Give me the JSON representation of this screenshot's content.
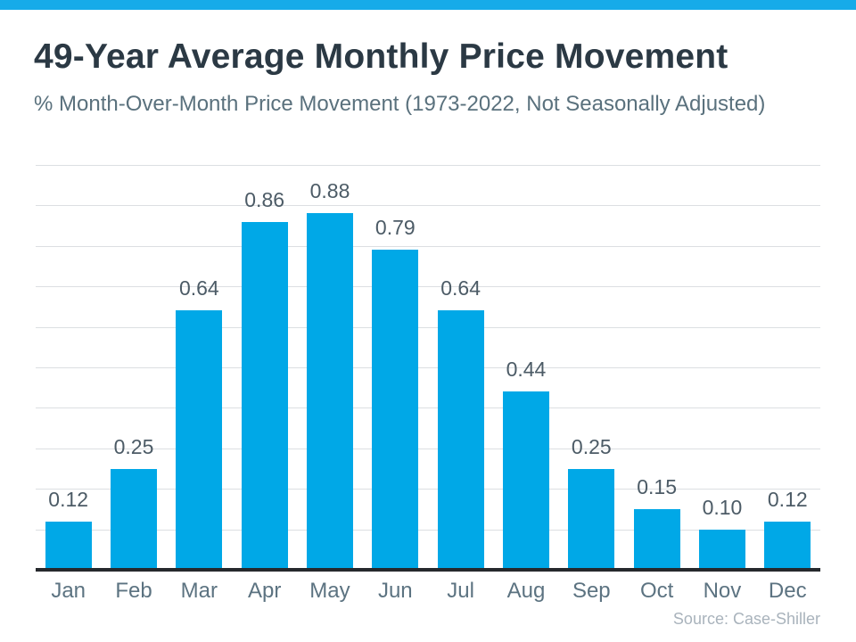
{
  "page": {
    "accent_color": "#16abe9",
    "bar_color": "#00a8e7",
    "axis_color": "#26292d",
    "gridline_color": "#dcdfe2"
  },
  "header": {
    "title": "49-Year Average Monthly Price Movement",
    "subtitle": "% Month-Over-Month Price Movement (1973-2022, Not Seasonally Adjusted)"
  },
  "chart_data": {
    "type": "bar",
    "title": "49-Year Average Monthly Price Movement",
    "subtitle": "% Month-Over-Month Price Movement (1973-2022, Not Seasonally Adjusted)",
    "categories": [
      "Jan",
      "Feb",
      "Mar",
      "Apr",
      "May",
      "Jun",
      "Jul",
      "Aug",
      "Sep",
      "Oct",
      "Nov",
      "Dec"
    ],
    "values": [
      0.12,
      0.25,
      0.64,
      0.86,
      0.88,
      0.79,
      0.64,
      0.44,
      0.25,
      0.15,
      0.1,
      0.12
    ],
    "data_labels": [
      "0.12",
      "0.25",
      "0.64",
      "0.86",
      "0.88",
      "0.79",
      "0.64",
      "0.44",
      "0.25",
      "0.15",
      "0.10",
      "0.12"
    ],
    "xlabel": "",
    "ylabel": "",
    "ylim": [
      0,
      1.0
    ],
    "grid_step": 0.1,
    "grid": true,
    "legend": false,
    "y_tick_labels_shown": false,
    "bar_color": "#00a8e7"
  },
  "footer": {
    "source": "Source: Case-Shiller"
  }
}
